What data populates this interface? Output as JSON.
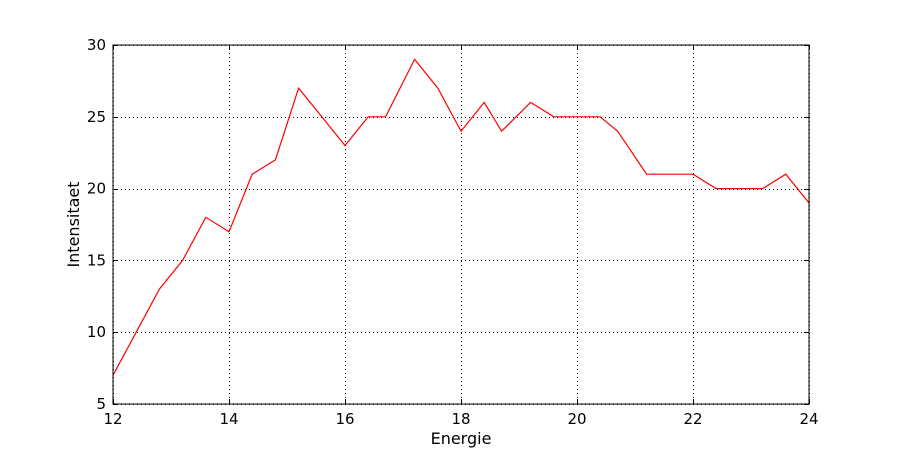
{
  "chart_data": {
    "type": "line",
    "title": "",
    "xlabel": "Energie",
    "ylabel": "Intensitaet",
    "xlim": [
      12,
      24
    ],
    "ylim": [
      5,
      30
    ],
    "xticks": [
      12,
      14,
      16,
      18,
      20,
      22,
      24
    ],
    "yticks": [
      5,
      10,
      15,
      20,
      25,
      30
    ],
    "grid": true,
    "series": [
      {
        "color": "#ff0000",
        "x": [
          12.0,
          12.4,
          12.8,
          13.2,
          13.6,
          14.0,
          14.4,
          14.8,
          15.2,
          15.6,
          16.0,
          16.4,
          16.7,
          17.2,
          17.6,
          18.0,
          18.4,
          18.7,
          19.2,
          19.6,
          20.0,
          20.4,
          20.7,
          21.2,
          22.0,
          22.4,
          23.2,
          23.6,
          24.0
        ],
        "y": [
          7,
          10,
          13,
          15,
          18,
          17,
          21,
          22,
          27,
          25,
          23,
          25,
          25,
          29,
          27,
          24,
          26,
          24,
          26,
          25,
          25,
          25,
          24,
          21,
          21,
          20,
          20,
          21,
          19
        ]
      }
    ]
  }
}
